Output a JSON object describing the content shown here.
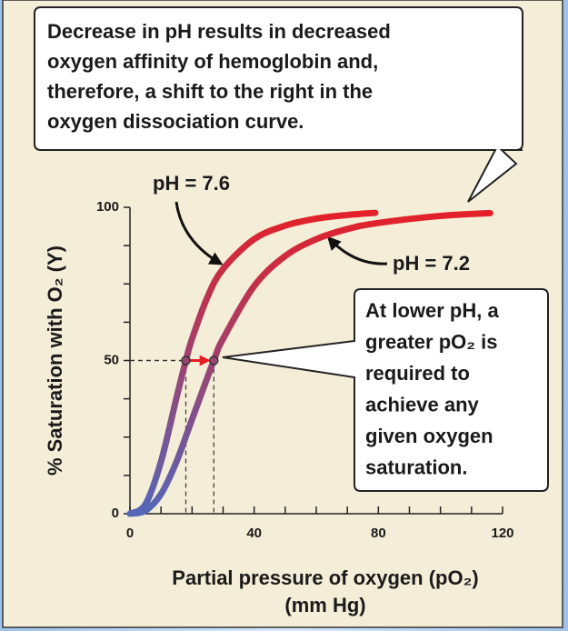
{
  "chart_data": {
    "type": "line",
    "callout_top": [
      "Decrease in pH results in decreased",
      "oxygen affinity of hemoglobin and,",
      "therefore, a shift to the right in the",
      "oxygen dissociation curve."
    ],
    "callout_right": [
      "At lower pH, a",
      "greater pO₂ is",
      "required to",
      "achieve any",
      "given oxygen",
      "saturation."
    ],
    "ylabel": "% Saturation with O₂ (Y)",
    "xlabel": [
      "Partial pressure of oxygen (pO₂)",
      "(mm Hg)"
    ],
    "xlim": [
      0,
      120
    ],
    "ylim": [
      0,
      100
    ],
    "xticks": [
      0,
      40,
      80,
      120
    ],
    "xminorticks": [
      10,
      20,
      30,
      50,
      60,
      70,
      90,
      100,
      110
    ],
    "yticks": [
      0,
      50,
      100
    ],
    "yminorticks": [
      12.5,
      25,
      37.5,
      62.5,
      75,
      87.5
    ],
    "colors": [
      "#5467b9",
      "#e61f26"
    ],
    "reference_y": 50,
    "series": [
      {
        "name": "pH = 7.6",
        "x": [
          0,
          5,
          10,
          15,
          18,
          20,
          25,
          30,
          40,
          50,
          60,
          70,
          79
        ],
        "values": [
          0,
          3.1,
          17.0,
          37.9,
          50,
          57.1,
          70.8,
          79.9,
          89.6,
          94.0,
          96.3,
          97.5,
          98.2
        ],
        "p50": 18
      },
      {
        "name": "pH = 7.2",
        "x": [
          0,
          5,
          10,
          15,
          20,
          27,
          30,
          40,
          50,
          60,
          70,
          80,
          100,
          116
        ],
        "values": [
          0,
          1.0,
          6.4,
          17.0,
          30.8,
          50,
          57.1,
          74.3,
          84.1,
          89.6,
          92.9,
          94.9,
          97.2,
          98.1
        ],
        "p50": 27
      }
    ]
  }
}
